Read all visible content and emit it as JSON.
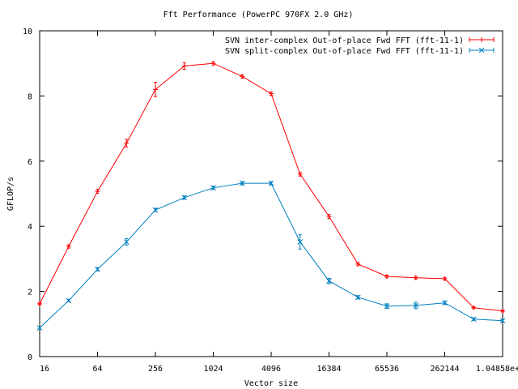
{
  "chart_data": {
    "type": "line",
    "title": "Fft Performance (PowerPC 970FX 2.0 GHz)",
    "xlabel": "Vector size",
    "ylabel": "GFLOP/s",
    "x_scale": "log2",
    "xlim": [
      16,
      1048576
    ],
    "ylim": [
      0,
      10
    ],
    "grid": false,
    "legend_position": "top-right",
    "x_ticks": [
      16,
      64,
      256,
      1024,
      4096,
      16384,
      65536,
      262144,
      1048576
    ],
    "x_tick_labels": [
      "16",
      "64",
      "256",
      "1024",
      "4096",
      "16384",
      "65536",
      "262144",
      "1.04858e+06"
    ],
    "y_ticks": [
      0,
      2,
      4,
      6,
      8,
      10
    ],
    "y_tick_labels": [
      "0",
      "2",
      "4",
      "6",
      "8",
      "10"
    ],
    "x": [
      16,
      32,
      64,
      128,
      256,
      512,
      1024,
      2048,
      4096,
      8192,
      16384,
      32768,
      65536,
      131072,
      262144,
      524288,
      1048576
    ],
    "series": [
      {
        "name": "SVN inter-complex Out-of-place Fwd FFT (fft-11-1)",
        "color": "#ff0000",
        "marker": "plus",
        "values": [
          1.62,
          3.38,
          5.07,
          6.55,
          8.2,
          8.92,
          9.0,
          8.6,
          8.07,
          5.6,
          4.3,
          2.84,
          2.46,
          2.42,
          2.39,
          1.5,
          1.4
        ],
        "error": [
          0.03,
          0.05,
          0.06,
          0.12,
          0.22,
          0.1,
          0.05,
          0.05,
          0.05,
          0.06,
          0.06,
          0.05,
          0.04,
          0.04,
          0.04,
          0.03,
          0.03
        ]
      },
      {
        "name": "SVN split-complex Out-of-place Fwd FFT (fft-11-1)",
        "color": "#0080c0",
        "marker": "cross",
        "values": [
          0.88,
          1.72,
          2.68,
          3.52,
          4.5,
          4.88,
          5.18,
          5.32,
          5.32,
          3.52,
          2.32,
          1.82,
          1.55,
          1.57,
          1.65,
          1.15,
          1.1
        ],
        "error": [
          0.03,
          0.04,
          0.05,
          0.1,
          0.05,
          0.05,
          0.05,
          0.05,
          0.05,
          0.22,
          0.08,
          0.05,
          0.07,
          0.1,
          0.05,
          0.04,
          0.04
        ]
      }
    ]
  }
}
